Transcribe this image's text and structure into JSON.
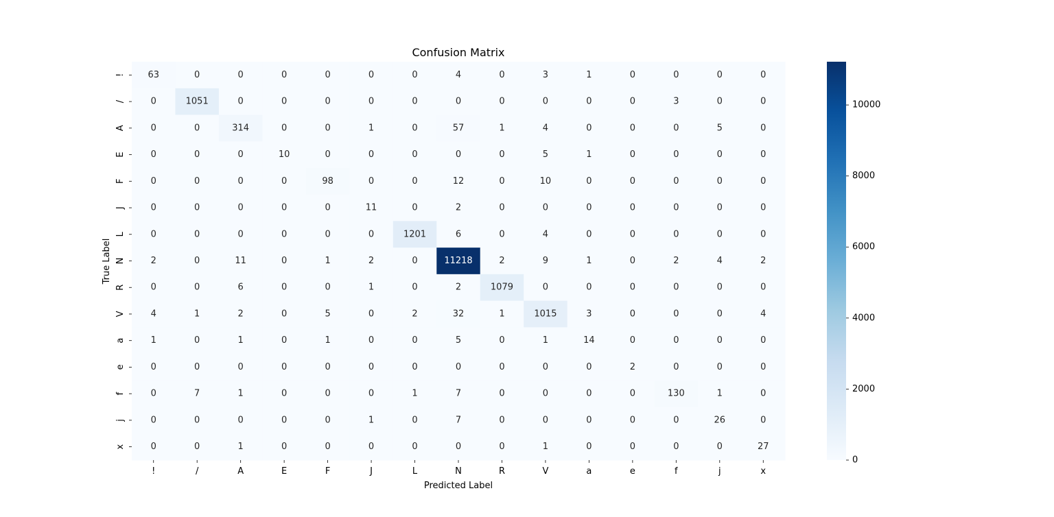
{
  "chart_data": {
    "type": "heatmap",
    "title": "Confusion Matrix",
    "xlabel": "Predicted Label",
    "ylabel": "True Label",
    "x_labels": [
      "!",
      "/",
      "A",
      "E",
      "F",
      "J",
      "L",
      "N",
      "R",
      "V",
      "a",
      "e",
      "f",
      "j",
      "x"
    ],
    "y_labels": [
      "!",
      "/",
      "A",
      "E",
      "F",
      "J",
      "L",
      "N",
      "R",
      "V",
      "a",
      "e",
      "f",
      "j",
      "x"
    ],
    "values": [
      [
        63,
        0,
        0,
        0,
        0,
        0,
        0,
        4,
        0,
        3,
        1,
        0,
        0,
        0,
        0
      ],
      [
        0,
        1051,
        0,
        0,
        0,
        0,
        0,
        0,
        0,
        0,
        0,
        0,
        3,
        0,
        0
      ],
      [
        0,
        0,
        314,
        0,
        0,
        1,
        0,
        57,
        1,
        4,
        0,
        0,
        0,
        5,
        0
      ],
      [
        0,
        0,
        0,
        10,
        0,
        0,
        0,
        0,
        0,
        5,
        1,
        0,
        0,
        0,
        0
      ],
      [
        0,
        0,
        0,
        0,
        98,
        0,
        0,
        12,
        0,
        10,
        0,
        0,
        0,
        0,
        0
      ],
      [
        0,
        0,
        0,
        0,
        0,
        11,
        0,
        2,
        0,
        0,
        0,
        0,
        0,
        0,
        0
      ],
      [
        0,
        0,
        0,
        0,
        0,
        0,
        1201,
        6,
        0,
        4,
        0,
        0,
        0,
        0,
        0
      ],
      [
        2,
        0,
        11,
        0,
        1,
        2,
        0,
        11218,
        2,
        9,
        1,
        0,
        2,
        4,
        2
      ],
      [
        0,
        0,
        6,
        0,
        0,
        1,
        0,
        2,
        1079,
        0,
        0,
        0,
        0,
        0,
        0
      ],
      [
        4,
        1,
        2,
        0,
        5,
        0,
        2,
        32,
        1,
        1015,
        3,
        0,
        0,
        0,
        4
      ],
      [
        1,
        0,
        1,
        0,
        1,
        0,
        0,
        5,
        0,
        1,
        14,
        0,
        0,
        0,
        0
      ],
      [
        0,
        0,
        0,
        0,
        0,
        0,
        0,
        0,
        0,
        0,
        0,
        2,
        0,
        0,
        0
      ],
      [
        0,
        7,
        1,
        0,
        0,
        0,
        1,
        7,
        0,
        0,
        0,
        0,
        130,
        1,
        0
      ],
      [
        0,
        0,
        0,
        0,
        0,
        1,
        0,
        7,
        0,
        0,
        0,
        0,
        0,
        26,
        0
      ],
      [
        0,
        0,
        1,
        0,
        0,
        0,
        0,
        0,
        0,
        1,
        0,
        0,
        0,
        0,
        27
      ]
    ],
    "colormap": "Blues",
    "color_range": [
      0,
      11218
    ],
    "colorbar_ticks": [
      0,
      2000,
      4000,
      6000,
      8000,
      10000
    ],
    "annotations": true
  }
}
